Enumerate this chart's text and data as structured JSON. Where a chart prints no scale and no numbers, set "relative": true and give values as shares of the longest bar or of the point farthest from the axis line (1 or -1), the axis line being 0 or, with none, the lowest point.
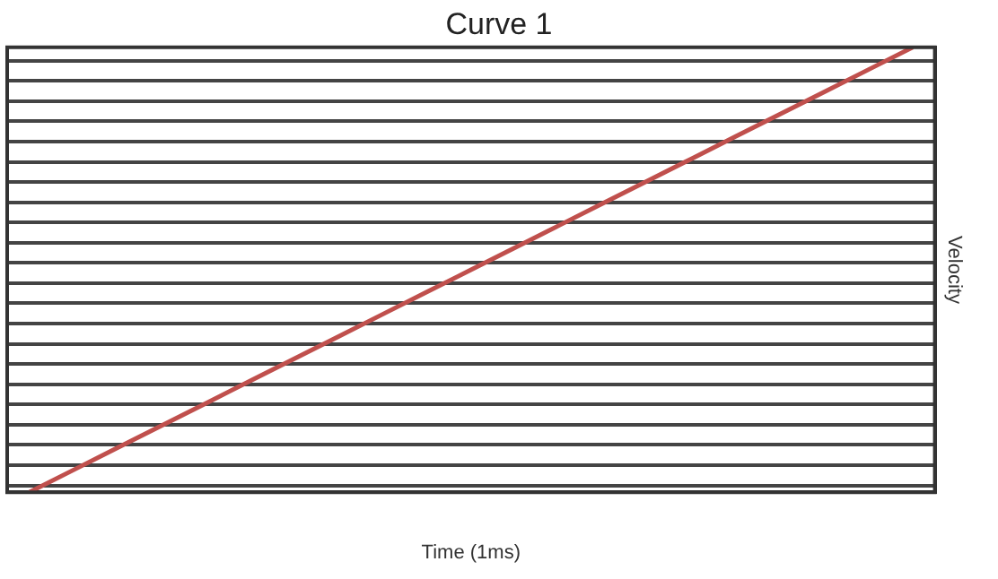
{
  "chart_data": {
    "type": "line",
    "title": "Curve 1",
    "xlabel": "Time (1ms)",
    "ylabel": "Velocity",
    "relative": true,
    "grid": "y",
    "legend": false,
    "marker": "none",
    "line_style": "solid",
    "categories": [
      null,
      null,
      null,
      null,
      null,
      null,
      null,
      null,
      null,
      null,
      null,
      null,
      null,
      null,
      null,
      null,
      null,
      null,
      null,
      null,
      null
    ],
    "series": [
      {
        "color": "#c0504d",
        "values": [
          0,
          0.05,
          0.1,
          0.15,
          0.2,
          0.25,
          0.3,
          0.35,
          0.4,
          0.45,
          0.5,
          0.55,
          0.6,
          0.65,
          0.7,
          0.75,
          0.8,
          0.85,
          0.9,
          0.95,
          1
        ]
      }
    ]
  }
}
